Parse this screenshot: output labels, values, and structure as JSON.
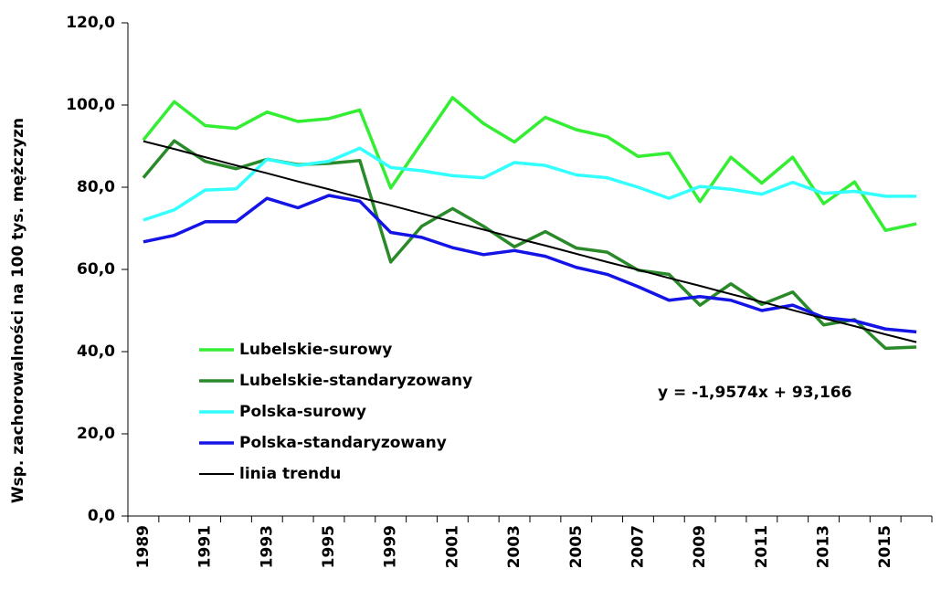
{
  "chart_data": {
    "type": "line",
    "y_label": "Wsp. zachorowalności na 100 tys. mężczyzn",
    "annotation": "y = -1,9574x + 93,166",
    "legend": "lower left",
    "categories": [
      "1989",
      null,
      "1991",
      null,
      "1993",
      null,
      "1995",
      null,
      "1999",
      null,
      "2001",
      null,
      "2003",
      null,
      "2005",
      null,
      "2007",
      null,
      "2009",
      null,
      "2011",
      null,
      "2013",
      null,
      "2015",
      null
    ],
    "ylim": [
      0,
      120
    ],
    "yticks": [
      {
        "value": 0,
        "label": "0,0"
      },
      {
        "value": 20,
        "label": "20,0"
      },
      {
        "value": 40,
        "label": "40,0"
      },
      {
        "value": 60,
        "label": "60,0"
      },
      {
        "value": 80,
        "label": "80,0"
      },
      {
        "value": 100,
        "label": "100,0"
      },
      {
        "value": 120,
        "label": "120,0"
      }
    ],
    "series": [
      {
        "name": "Lubelskie-surowy",
        "color": "#33ee33",
        "values": [
          91.5,
          100.8,
          95,
          94.3,
          98.3,
          96,
          96.7,
          98.8,
          79.8,
          90.8,
          101.8,
          95.5,
          91,
          97,
          94,
          92.3,
          87.5,
          88.3,
          76.5,
          87.3,
          81,
          87.3,
          76,
          81.3,
          69.5,
          71.1
        ]
      },
      {
        "name": "Lubelskie-standaryzowany",
        "color": "#2a8a2a",
        "values": [
          82.3,
          91.3,
          86.3,
          84.5,
          86.8,
          85.5,
          85.8,
          86.5,
          61.8,
          70.5,
          74.8,
          70.5,
          65.5,
          69.2,
          65.2,
          64.2,
          59.8,
          58.8,
          51.3,
          56.5,
          51.5,
          54.5,
          46.5,
          47.8,
          40.8,
          41.1
        ]
      },
      {
        "name": "Polska-surowy",
        "color": "#33ffff",
        "values": [
          72,
          74.5,
          79.3,
          79.6,
          86.8,
          85.3,
          86.3,
          89.5,
          84.8,
          84,
          82.8,
          82.3,
          86,
          85.3,
          83,
          82.3,
          80,
          77.3,
          80.2,
          79.5,
          78.3,
          81.2,
          78.5,
          79,
          77.8,
          77.8
        ]
      },
      {
        "name": "Polska-standaryzowany",
        "color": "#1414e6",
        "values": [
          66.7,
          68.3,
          71.6,
          71.6,
          77.3,
          75,
          78,
          76.6,
          69,
          67.8,
          65.3,
          63.6,
          64.6,
          63.2,
          60.5,
          58.8,
          55.8,
          52.5,
          53.4,
          52.5,
          50,
          51.3,
          48.3,
          47.5,
          45.5,
          44.8
        ]
      },
      {
        "name": "linia trendu",
        "color": "#000000",
        "values": [
          91.2,
          89.3,
          87.3,
          85.3,
          83.4,
          81.4,
          79.5,
          77.5,
          75.6,
          73.6,
          71.6,
          69.7,
          67.7,
          65.8,
          63.8,
          61.8,
          59.9,
          57.9,
          56,
          54,
          52.1,
          50.1,
          48.1,
          46.2,
          44.2,
          42.3
        ]
      }
    ]
  }
}
